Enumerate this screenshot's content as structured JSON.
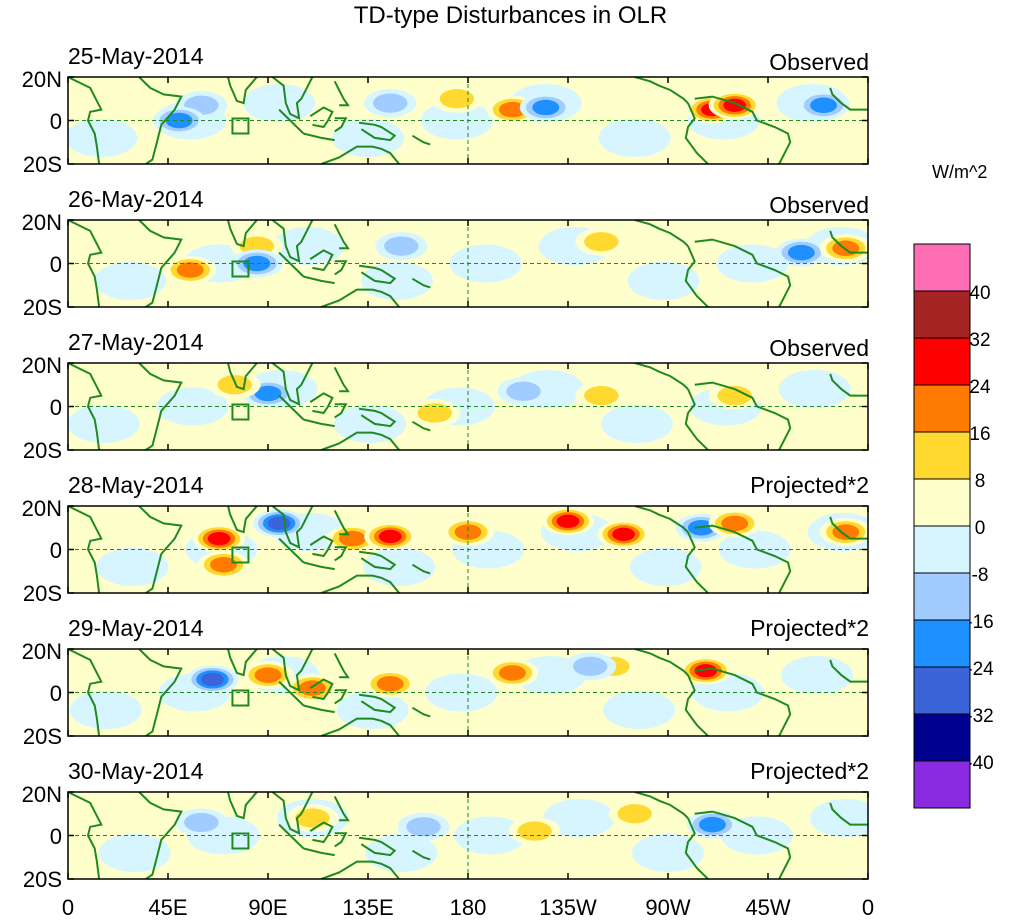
{
  "title": "TD-type Disturbances in OLR",
  "colors": {
    "land": "#1f8a1f",
    "levels": [
      "#8a2be2",
      "#000090",
      "#3a64d8",
      "#1e90ff",
      "#a0ccff",
      "#d6f5ff",
      "#ffffcc",
      "#ffd830",
      "#ff7a00",
      "#ff0000",
      "#a52424",
      "#ff6eb4"
    ]
  },
  "panels": [
    {
      "date": "25-May-2014",
      "kind": "Observed"
    },
    {
      "date": "26-May-2014",
      "kind": "Observed"
    },
    {
      "date": "27-May-2014",
      "kind": "Observed"
    },
    {
      "date": "28-May-2014",
      "kind": "Projected*2"
    },
    {
      "date": "29-May-2014",
      "kind": "Projected*2"
    },
    {
      "date": "30-May-2014",
      "kind": "Projected*2"
    }
  ],
  "lat_labels": [
    "20N",
    "0",
    "20S"
  ],
  "lon_labels": [
    "0",
    "45E",
    "90E",
    "135E",
    "180",
    "135W",
    "90W",
    "45W",
    "0"
  ],
  "colorbar": {
    "units": "W/m^2",
    "labels": [
      "40",
      "32",
      "24",
      "16",
      "8",
      "0",
      "-8",
      "-16",
      "-24",
      "-32",
      "-40"
    ]
  },
  "chart_data": {
    "type": "heatmap",
    "title": "TD-type Disturbances in OLR",
    "variable": "OLR anomaly",
    "units": "W/m^2",
    "lat_range": [
      -20,
      20
    ],
    "lon_range": [
      0,
      360
    ],
    "contour_levels": [
      -40,
      -32,
      -24,
      -16,
      -8,
      0,
      8,
      16,
      24,
      32,
      40
    ],
    "panels": [
      {
        "date": "25-May-2014",
        "kind": "Observed",
        "features": [
          {
            "lon": 290,
            "lat": 5,
            "value": 30
          },
          {
            "lon": 300,
            "lat": 7,
            "value": 24
          },
          {
            "lon": 175,
            "lat": 10,
            "value": 14
          },
          {
            "lon": 200,
            "lat": 5,
            "value": 20
          },
          {
            "lon": 215,
            "lat": 6,
            "value": -20
          },
          {
            "lon": 60,
            "lat": 7,
            "value": -14
          },
          {
            "lon": 50,
            "lat": 0,
            "value": -18
          },
          {
            "lon": 145,
            "lat": 8,
            "value": -14
          },
          {
            "lon": 340,
            "lat": 7,
            "value": -20
          }
        ]
      },
      {
        "date": "26-May-2014",
        "kind": "Observed",
        "features": [
          {
            "lon": 85,
            "lat": 8,
            "value": 14
          },
          {
            "lon": 55,
            "lat": -3,
            "value": 18
          },
          {
            "lon": 85,
            "lat": 0,
            "value": -18
          },
          {
            "lon": 150,
            "lat": 8,
            "value": -12
          },
          {
            "lon": 240,
            "lat": 10,
            "value": 12
          },
          {
            "lon": 330,
            "lat": 5,
            "value": -22
          },
          {
            "lon": 350,
            "lat": 7,
            "value": 20
          }
        ]
      },
      {
        "date": "27-May-2014",
        "kind": "Observed",
        "features": [
          {
            "lon": 90,
            "lat": 6,
            "value": -16
          },
          {
            "lon": 75,
            "lat": 10,
            "value": 12
          },
          {
            "lon": 165,
            "lat": -3,
            "value": 12
          },
          {
            "lon": 205,
            "lat": 7,
            "value": -12
          },
          {
            "lon": 240,
            "lat": 5,
            "value": 14
          },
          {
            "lon": 300,
            "lat": 5,
            "value": 12
          }
        ]
      },
      {
        "date": "28-May-2014",
        "kind": "Projected*2",
        "features": [
          {
            "lon": 68,
            "lat": 5,
            "value": 30
          },
          {
            "lon": 70,
            "lat": -7,
            "value": 22
          },
          {
            "lon": 95,
            "lat": 12,
            "value": -24
          },
          {
            "lon": 128,
            "lat": 5,
            "value": 20
          },
          {
            "lon": 145,
            "lat": 6,
            "value": 26
          },
          {
            "lon": 180,
            "lat": 8,
            "value": 16
          },
          {
            "lon": 225,
            "lat": 13,
            "value": 26
          },
          {
            "lon": 250,
            "lat": 7,
            "value": 24
          },
          {
            "lon": 285,
            "lat": 10,
            "value": -20
          },
          {
            "lon": 300,
            "lat": 12,
            "value": 18
          },
          {
            "lon": 350,
            "lat": 8,
            "value": 18
          }
        ]
      },
      {
        "date": "29-May-2014",
        "kind": "Projected*2",
        "features": [
          {
            "lon": 65,
            "lat": 6,
            "value": -28
          },
          {
            "lon": 90,
            "lat": 8,
            "value": 16
          },
          {
            "lon": 110,
            "lat": 2,
            "value": 22
          },
          {
            "lon": 145,
            "lat": 4,
            "value": 22
          },
          {
            "lon": 200,
            "lat": 9,
            "value": 16
          },
          {
            "lon": 245,
            "lat": 12,
            "value": 14
          },
          {
            "lon": 287,
            "lat": 10,
            "value": 24
          },
          {
            "lon": 235,
            "lat": 12,
            "value": -14
          }
        ]
      },
      {
        "date": "30-May-2014",
        "kind": "Projected*2",
        "features": [
          {
            "lon": 60,
            "lat": 6,
            "value": -12
          },
          {
            "lon": 110,
            "lat": 8,
            "value": 10
          },
          {
            "lon": 160,
            "lat": 4,
            "value": -10
          },
          {
            "lon": 210,
            "lat": 2,
            "value": 10
          },
          {
            "lon": 255,
            "lat": 10,
            "value": 10
          },
          {
            "lon": 290,
            "lat": 5,
            "value": -16
          }
        ]
      }
    ]
  }
}
